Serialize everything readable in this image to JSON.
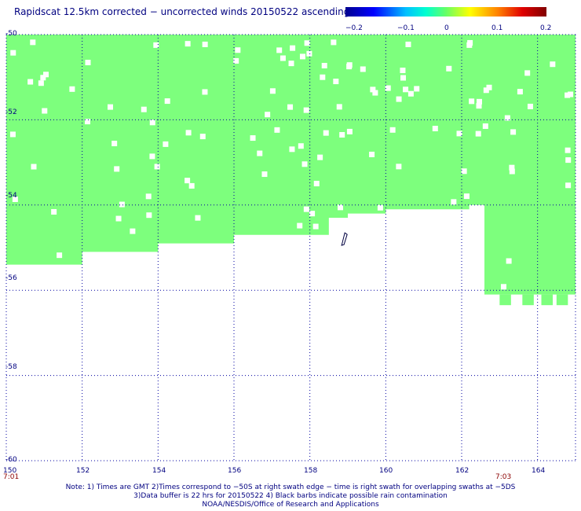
{
  "title": "Rapidscat 12.5km corrected − uncorrected winds 20150522 ascending",
  "colorbar": {
    "labels": [
      "−0.2",
      "−0.1",
      "0",
      "0.1",
      "0.2"
    ],
    "colors": [
      "#00008f",
      "#0000ff",
      "#00bfff",
      "#66ff66",
      "#ffff00",
      "#ff8000",
      "#800000"
    ]
  },
  "chart_data": {
    "type": "heatmap",
    "x_range": [
      150,
      165
    ],
    "y_range": [
      -60,
      -50
    ],
    "x_ticks": [
      "150",
      "152",
      "154",
      "156",
      "158",
      "160",
      "162",
      "164"
    ],
    "y_ticks": [
      "-50",
      "-52",
      "-54",
      "-56",
      "-58",
      "-60"
    ],
    "fill_color": "#7dff7d",
    "value_range": [
      -0.2,
      0.2
    ],
    "dominant_value": 0,
    "swath_bottom_latitude": [
      [
        150,
        -55.6
      ],
      [
        152,
        -55.4
      ],
      [
        154,
        -55.1
      ],
      [
        156,
        -54.9
      ],
      [
        157.5,
        -54.7
      ],
      [
        158.5,
        -54.7
      ],
      [
        159,
        -54.3
      ],
      [
        160,
        -54.2
      ],
      [
        161.5,
        -54.1
      ],
      [
        162.2,
        -54.1
      ],
      [
        162.6,
        -54.0
      ],
      [
        163,
        -56.1
      ],
      [
        165,
        -56.1
      ]
    ],
    "rain_flag_location": [
      158.9,
      -54.8
    ],
    "grid": true
  },
  "times": {
    "left": "7:01",
    "right": "7:03"
  },
  "notes": [
    "Note: 1) Times are GMT 2)Times correspond to −50S at right swath edge − time is right swath for overlapping swaths at −5DS",
    "3)Data buffer is 22 hrs for 20150522 4) Black barbs indicate possible rain contamination",
    "NOAA/NESDIS/Office of Research and Applications"
  ]
}
